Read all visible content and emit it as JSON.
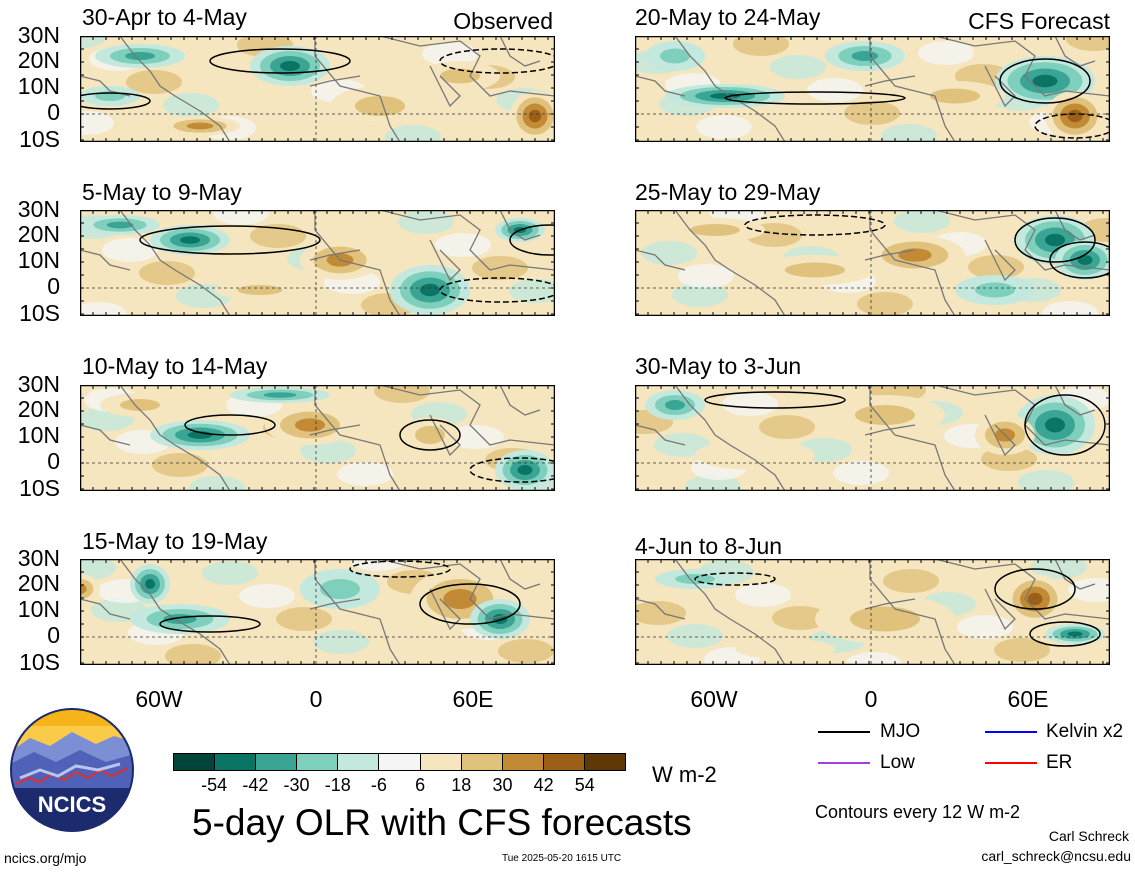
{
  "panels": [
    {
      "title": "30-Apr to 4-May",
      "right": "Observed"
    },
    {
      "title": "5-May to 9-May",
      "right": ""
    },
    {
      "title": "10-May to 14-May",
      "right": ""
    },
    {
      "title": "15-May to 19-May",
      "right": ""
    },
    {
      "title": "20-May to 24-May",
      "right": "CFS Forecast"
    },
    {
      "title": "25-May to 29-May",
      "right": ""
    },
    {
      "title": "30-May to 3-Jun",
      "right": ""
    },
    {
      "title": "4-Jun to 8-Jun",
      "right": ""
    }
  ],
  "lat_labels": [
    "30N",
    "20N",
    "10N",
    "0",
    "10S"
  ],
  "lon_labels": [
    "60W",
    "0",
    "60E"
  ],
  "colorbar": {
    "colors": [
      "#00443a",
      "#0a7565",
      "#3aa595",
      "#7fcfbd",
      "#c3e8dd",
      "#f5f5f5",
      "#f5e6bf",
      "#e0c27d",
      "#c38a36",
      "#9b5f17",
      "#5f3808"
    ],
    "ticks": [
      "-54",
      "-42",
      "-30",
      "-18",
      "-6",
      "6",
      "18",
      "30",
      "42",
      "54"
    ],
    "units": "W m-2"
  },
  "title": "5-day OLR with CFS forecasts",
  "legend": [
    {
      "label": "MJO",
      "color": "#000000"
    },
    {
      "label": "Kelvin x2",
      "color": "#0000ff"
    },
    {
      "label": "Low",
      "color": "#a040e0"
    },
    {
      "label": "ER",
      "color": "#ff0000"
    }
  ],
  "contours_note": "Contours every 12 W m-2",
  "author": "Carl Schreck",
  "email": "carl_schreck@ncsu.edu",
  "url": "ncics.org/mjo",
  "timestamp": "Tue 2025-05-20 1615 UTC",
  "logo_text": "NCICS"
}
